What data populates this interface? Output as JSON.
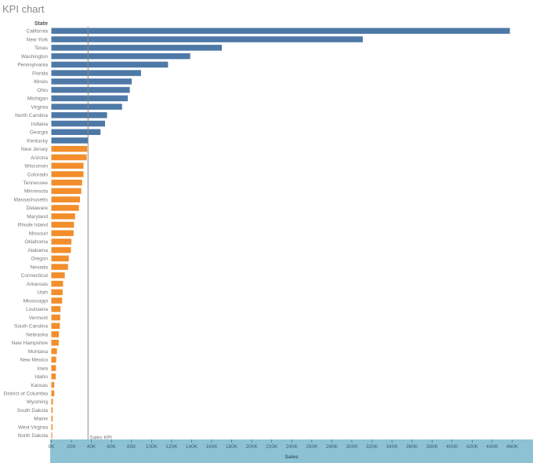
{
  "colors": {
    "above_kpi": "#4e79a7",
    "below_kpi": "#f28e2b",
    "axis_band": "#8cc2d4",
    "reference_line": "#8a8a8a"
  },
  "chart_data": {
    "type": "bar",
    "orientation": "horizontal",
    "title": "KPI chart",
    "category_header": "State",
    "xlabel": "Sales",
    "xlim": [
      0,
      470000
    ],
    "x_ticks": [
      0,
      20000,
      40000,
      60000,
      80000,
      100000,
      120000,
      140000,
      160000,
      180000,
      200000,
      220000,
      240000,
      260000,
      280000,
      300000,
      320000,
      340000,
      360000,
      380000,
      400000,
      420000,
      440000,
      460000
    ],
    "x_tick_labels": [
      "0K",
      "20K",
      "40K",
      "60K",
      "80K",
      "100K",
      "120K",
      "140K",
      "160K",
      "180K",
      "200K",
      "220K",
      "240K",
      "260K",
      "280K",
      "300K",
      "320K",
      "340K",
      "360K",
      "380K",
      "400K",
      "420K",
      "440K",
      "460K"
    ],
    "grid": false,
    "reference_line": {
      "label": "Sales KPI",
      "value": 36600
    },
    "categories": [
      "California",
      "New York",
      "Texas",
      "Washington",
      "Pennsylvania",
      "Florida",
      "Illinois",
      "Ohio",
      "Michigan",
      "Virginia",
      "North Carolina",
      "Indiana",
      "Georgia",
      "Kentucky",
      "New Jersey",
      "Arizona",
      "Wisconsin",
      "Colorado",
      "Tennessee",
      "Minnesota",
      "Massachusetts",
      "Delaware",
      "Maryland",
      "Rhode Island",
      "Missouri",
      "Oklahoma",
      "Alabama",
      "Oregon",
      "Nevada",
      "Connecticut",
      "Arkansas",
      "Utah",
      "Mississippi",
      "Louisiana",
      "Vermont",
      "South Carolina",
      "Nebraska",
      "New Hampshire",
      "Montana",
      "New Mexico",
      "Iowa",
      "Idaho",
      "Kansas",
      "District of Columbia",
      "Wyoming",
      "South Dakota",
      "Maine",
      "West Virginia",
      "North Dakota"
    ],
    "values": [
      457700,
      310900,
      170200,
      138600,
      116500,
      89500,
      80200,
      78300,
      76300,
      70600,
      55600,
      53600,
      49100,
      36600,
      35800,
      35300,
      32100,
      32100,
      30700,
      29900,
      28600,
      27500,
      23700,
      22600,
      22200,
      20000,
      19500,
      17400,
      16700,
      13400,
      11700,
      11200,
      10800,
      9200,
      8900,
      8500,
      7500,
      7300,
      5600,
      4800,
      4600,
      4400,
      2900,
      2900,
      1600,
      1300,
      1300,
      1200,
      900
    ]
  }
}
